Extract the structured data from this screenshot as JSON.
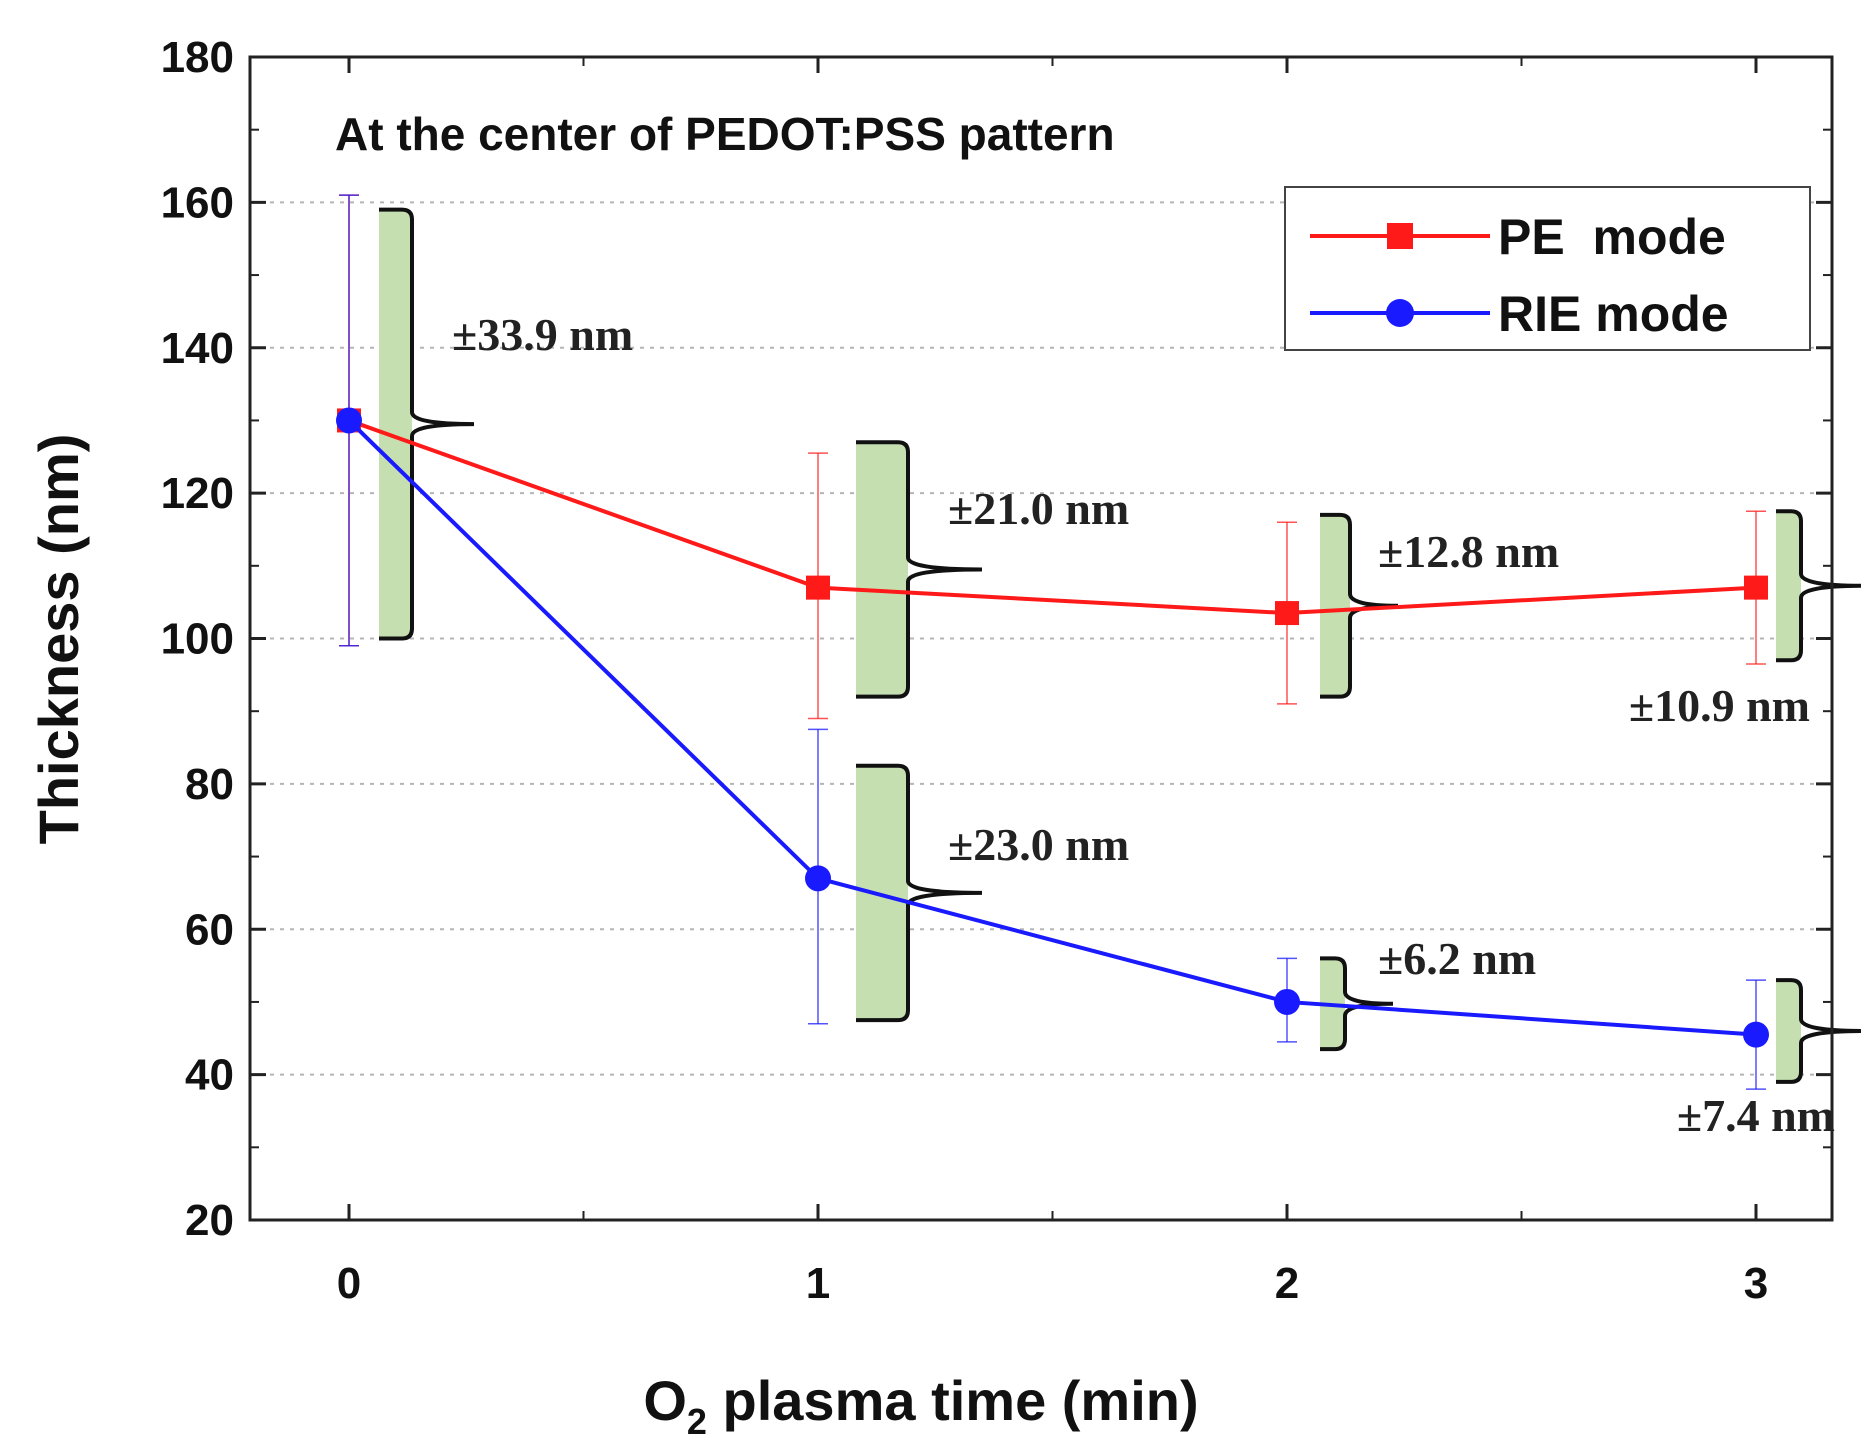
{
  "chart_data": {
    "type": "line",
    "title": "At the center of PEDOT:PSS pattern",
    "xlabel": "O",
    "xlabel_subscript": "2",
    "xlabel_rest": " plasma time (min)",
    "ylabel": "Thickness (nm)",
    "xlim": [
      -0.2,
      3.2
    ],
    "ylim": [
      20,
      180
    ],
    "x_ticks": [
      0,
      1,
      2,
      3
    ],
    "x_minor_ticks": [
      0.5,
      1.5,
      2.5
    ],
    "y_ticks": [
      20,
      40,
      60,
      80,
      100,
      120,
      140,
      160,
      180
    ],
    "grid_y": [
      40,
      60,
      80,
      100,
      120,
      140,
      160
    ],
    "grid_style": "dotted horizontal",
    "legend_position": "top-right",
    "x": [
      0,
      1,
      2,
      3
    ],
    "series": [
      {
        "name": "PE  mode",
        "color": "#ff1a1a",
        "marker": "square",
        "values": [
          130,
          107,
          103.5,
          107
        ],
        "error_low": [
          99,
          89,
          91,
          96.5
        ],
        "error_high": [
          161,
          125.5,
          116,
          117.5
        ],
        "spread_labels": [
          "±33.9 nm",
          "±21.0 nm",
          "±12.8 nm",
          "±10.9 nm"
        ]
      },
      {
        "name": "RIE mode",
        "color": "#1a1aff",
        "marker": "circle",
        "values": [
          130,
          67,
          50,
          45.5
        ],
        "error_low": [
          99,
          47,
          44.5,
          38
        ],
        "error_high": [
          161,
          87.5,
          56,
          53
        ],
        "spread_labels": [
          "±23.0 nm",
          "±6.2 nm",
          "±7.4 nm"
        ]
      }
    ],
    "bracket_fill": "#c6dfb1",
    "spread_brackets": [
      {
        "series": "combined",
        "x": 0,
        "y_from": 100,
        "y_to": 159,
        "label": "±33.9 nm"
      },
      {
        "series": "PE  mode",
        "x": 1,
        "y_from": 92,
        "y_to": 127,
        "label": "±21.0 nm"
      },
      {
        "series": "PE  mode",
        "x": 2,
        "y_from": 92,
        "y_to": 117,
        "label": "±12.8 nm"
      },
      {
        "series": "PE  mode",
        "x": 3,
        "y_from": 97,
        "y_to": 117.5,
        "label": "±10.9 nm"
      },
      {
        "series": "RIE mode",
        "x": 1,
        "y_from": 47.5,
        "y_to": 82.5,
        "label": "±23.0 nm"
      },
      {
        "series": "RIE mode",
        "x": 2,
        "y_from": 43.5,
        "y_to": 56,
        "label": "±6.2 nm"
      },
      {
        "series": "RIE mode",
        "x": 3,
        "y_from": 39,
        "y_to": 53,
        "label": "±7.4 nm"
      }
    ]
  }
}
